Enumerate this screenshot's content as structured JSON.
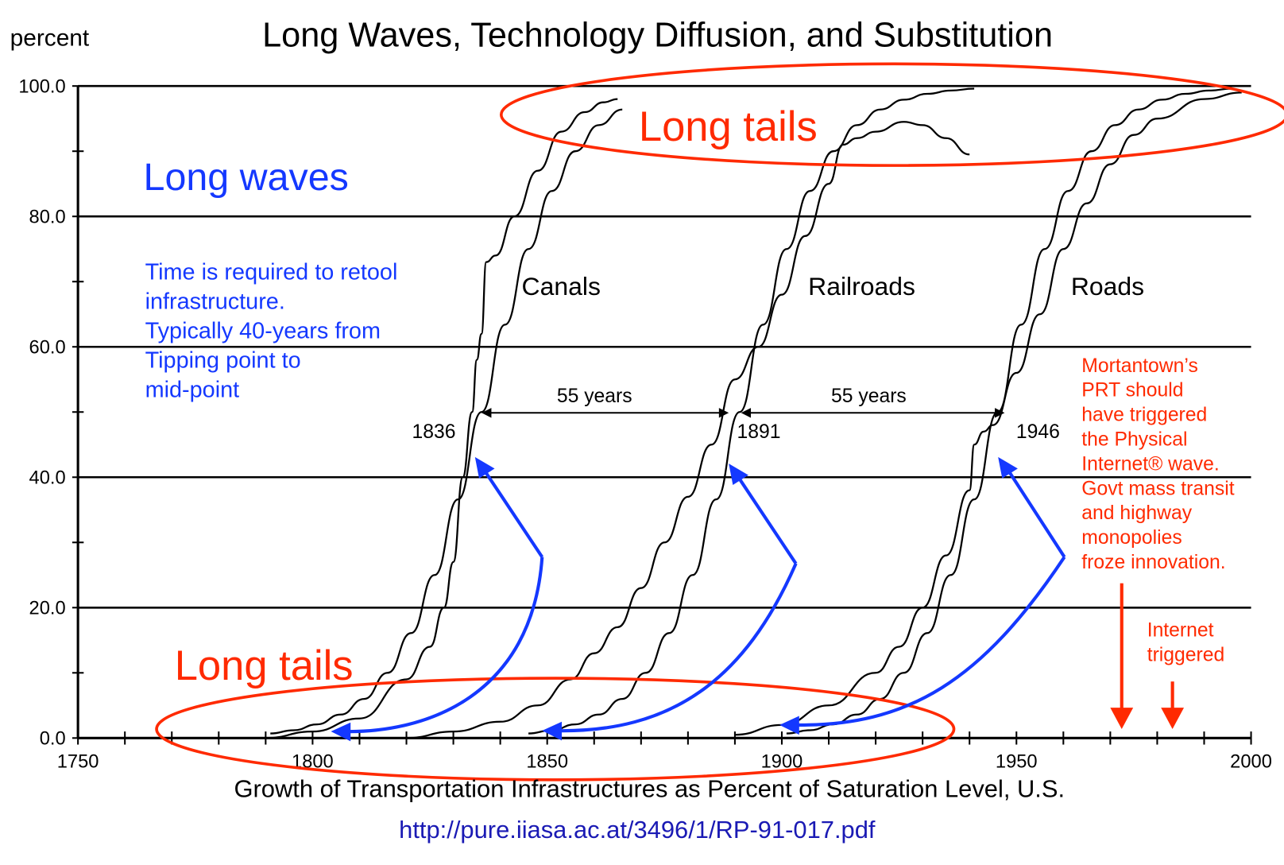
{
  "chart_data": {
    "type": "line",
    "title": "Long Waves, Technology Diffusion, and Substitution",
    "ylabel": "percent",
    "xlabel": "Growth of Transportation Infrastructures as Percent of Saturation Level, U.S.",
    "source_url": "http://pure.iiasa.ac.at/3496/1/RP-91-017.pdf",
    "xlim": [
      1750,
      2000
    ],
    "ylim": [
      0,
      100
    ],
    "x_tick_labels": [
      "1750",
      "1800",
      "1850",
      "1900",
      "1950",
      "2000"
    ],
    "x_tick_values": [
      1750,
      1800,
      1850,
      1900,
      1950,
      2000
    ],
    "y_tick_labels": [
      "0.0",
      "20.0",
      "40.0",
      "60.0",
      "80.0",
      "100.0"
    ],
    "y_tick_values": [
      0,
      20,
      40,
      60,
      80,
      100
    ],
    "grid": "horizontal",
    "series": [
      {
        "name": "Canals",
        "kind": "observed",
        "points": [
          [
            1790,
            0
          ],
          [
            1800,
            1
          ],
          [
            1810,
            3
          ],
          [
            1820,
            9
          ],
          [
            1825,
            14
          ],
          [
            1828,
            20
          ],
          [
            1830,
            27
          ],
          [
            1832,
            40
          ],
          [
            1834,
            50
          ],
          [
            1835,
            58
          ],
          [
            1836,
            62
          ],
          [
            1837,
            73
          ],
          [
            1839,
            74
          ],
          [
            1843,
            80
          ],
          [
            1848,
            87
          ],
          [
            1853,
            93
          ],
          [
            1858,
            96
          ],
          [
            1862,
            97.5
          ],
          [
            1865,
            98
          ]
        ]
      },
      {
        "name": "Canals",
        "kind": "fit",
        "points": [
          [
            1791,
            0.7
          ],
          [
            1796,
            1.2
          ],
          [
            1801,
            2.1
          ],
          [
            1806,
            3.6
          ],
          [
            1811,
            6.0
          ],
          [
            1816,
            10.0
          ],
          [
            1821,
            16.1
          ],
          [
            1826,
            25
          ],
          [
            1831,
            36.6
          ],
          [
            1836,
            50
          ],
          [
            1841,
            63.4
          ],
          [
            1846,
            75
          ],
          [
            1851,
            83.9
          ],
          [
            1856,
            90
          ],
          [
            1861,
            94
          ],
          [
            1866,
            96.4
          ]
        ]
      },
      {
        "name": "Railroads",
        "kind": "observed",
        "points": [
          [
            1820,
            0
          ],
          [
            1830,
            1
          ],
          [
            1840,
            2.5
          ],
          [
            1848,
            5
          ],
          [
            1855,
            9
          ],
          [
            1860,
            13
          ],
          [
            1865,
            17
          ],
          [
            1870,
            23
          ],
          [
            1875,
            30
          ],
          [
            1880,
            37
          ],
          [
            1885,
            45
          ],
          [
            1890,
            55
          ],
          [
            1895,
            60
          ],
          [
            1900,
            68
          ],
          [
            1905,
            77
          ],
          [
            1910,
            85
          ],
          [
            1913,
            91
          ],
          [
            1916,
            92
          ],
          [
            1920,
            93
          ],
          [
            1926,
            94.5
          ],
          [
            1930,
            94
          ],
          [
            1935,
            92
          ],
          [
            1940,
            89.5
          ]
        ]
      },
      {
        "name": "Railroads",
        "kind": "fit",
        "points": [
          [
            1846,
            0.7
          ],
          [
            1851,
            1.2
          ],
          [
            1856,
            2.1
          ],
          [
            1861,
            3.6
          ],
          [
            1866,
            6.0
          ],
          [
            1871,
            10.0
          ],
          [
            1876,
            16.1
          ],
          [
            1881,
            25
          ],
          [
            1886,
            36.6
          ],
          [
            1891,
            50
          ],
          [
            1896,
            63.4
          ],
          [
            1901,
            75
          ],
          [
            1906,
            83.9
          ],
          [
            1911,
            90
          ],
          [
            1916,
            94
          ],
          [
            1921,
            96.4
          ],
          [
            1926,
            97.9
          ],
          [
            1931,
            98.8
          ],
          [
            1936,
            99.3
          ],
          [
            1941,
            99.6
          ]
        ]
      },
      {
        "name": "Roads",
        "kind": "observed",
        "points": [
          [
            1890,
            0.5
          ],
          [
            1900,
            2
          ],
          [
            1910,
            5
          ],
          [
            1920,
            10
          ],
          [
            1925,
            14
          ],
          [
            1930,
            20
          ],
          [
            1935,
            28
          ],
          [
            1940,
            38
          ],
          [
            1941,
            45
          ],
          [
            1943,
            47
          ],
          [
            1945,
            48
          ],
          [
            1950,
            56
          ],
          [
            1955,
            65
          ],
          [
            1960,
            75
          ],
          [
            1965,
            82
          ],
          [
            1970,
            88
          ],
          [
            1975,
            92.5
          ],
          [
            1980,
            95
          ],
          [
            1990,
            98
          ],
          [
            1998,
            99
          ]
        ]
      },
      {
        "name": "Roads",
        "kind": "fit",
        "points": [
          [
            1901,
            0.7
          ],
          [
            1906,
            1.2
          ],
          [
            1911,
            2.1
          ],
          [
            1916,
            3.6
          ],
          [
            1921,
            6.0
          ],
          [
            1926,
            10.0
          ],
          [
            1931,
            16.1
          ],
          [
            1936,
            25
          ],
          [
            1941,
            36.6
          ],
          [
            1946,
            50
          ],
          [
            1951,
            63.4
          ],
          [
            1956,
            75
          ],
          [
            1961,
            83.9
          ],
          [
            1966,
            90
          ],
          [
            1971,
            94
          ],
          [
            1976,
            96.4
          ],
          [
            1981,
            97.9
          ],
          [
            1986,
            98.8
          ],
          [
            1991,
            99.3
          ],
          [
            1996,
            99.6
          ]
        ]
      }
    ],
    "series_labels": [
      "Canals",
      "Railroads",
      "Roads"
    ],
    "midpoint_labels": [
      "1836",
      "1891",
      "1946"
    ],
    "interval_labels": [
      "55 years",
      "55 years"
    ],
    "annotations": {
      "long_waves": "Long waves",
      "long_tails_top": "Long tails",
      "long_tails_bottom": "Long tails",
      "retool_note": [
        "Time is required to retool",
        "infrastructure.",
        "Typically 40-years from",
        "Tipping point to",
        "mid-point"
      ],
      "prt_note": [
        "Mortantown’s",
        "PRT should",
        "have triggered",
        "the Physical",
        "Internet® wave.",
        "Govt mass transit",
        "and highway",
        "monopolies",
        "froze innovation."
      ],
      "internet_note": [
        "Internet",
        "triggered"
      ]
    },
    "colors": {
      "blue": "#1438ff",
      "red": "#ff2a00",
      "url": "#1a1ab4",
      "line": "#000000"
    }
  }
}
